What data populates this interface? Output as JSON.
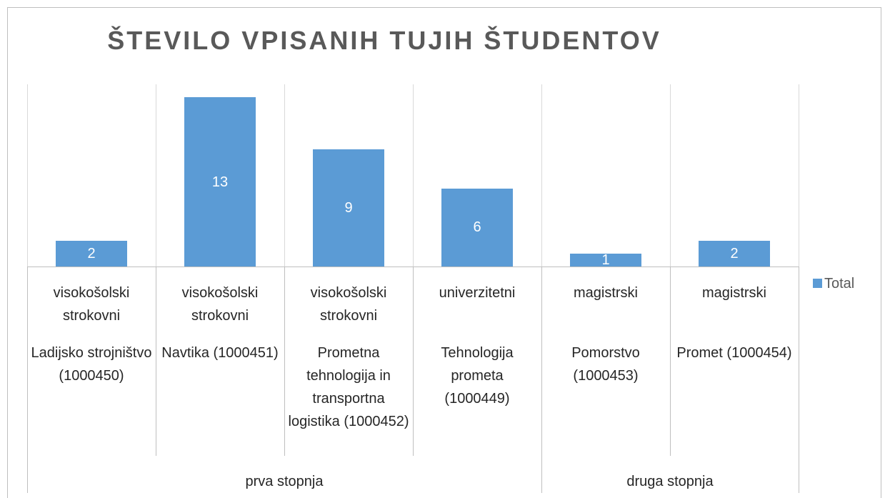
{
  "chart_data": {
    "type": "bar",
    "title": "ŠTEVILO VPISANIH TUJIH ŠTUDENTOV",
    "categories": [
      "Ladijsko strojništvo (1000450)",
      "Navtika (1000451)",
      "Prometna tehnologija in transportna logistika (1000452)",
      "Tehnologija prometa (1000449)",
      "Pomorstvo (1000453)",
      "Promet (1000454)"
    ],
    "subcategories": [
      "visokošolski strokovni",
      "visokošolski strokovni",
      "visokošolski strokovni",
      "univerzitetni",
      "magistrski",
      "magistrski"
    ],
    "groups": [
      "prva stopnja",
      "prva stopnja",
      "prva stopnja",
      "prva stopnja",
      "druga stopnja",
      "druga stopnja"
    ],
    "series": [
      {
        "name": "Total",
        "color": "#5b9bd5",
        "values": [
          2,
          13,
          9,
          6,
          1,
          2
        ]
      }
    ],
    "ylim": [
      0,
      14
    ],
    "legend": "right"
  }
}
